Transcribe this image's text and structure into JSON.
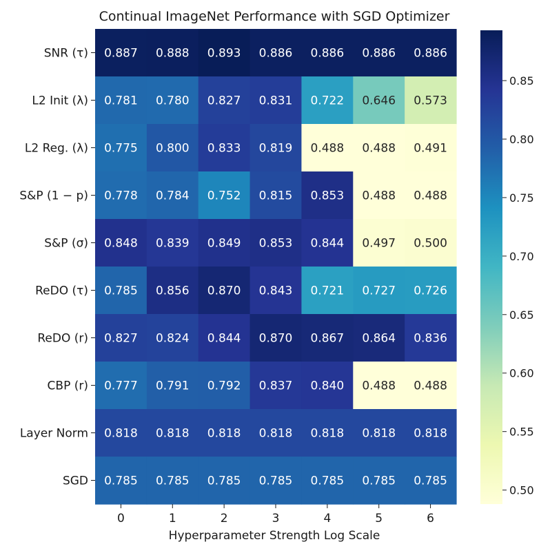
{
  "chart_data": {
    "type": "heatmap",
    "title": "Continual ImageNet Performance with SGD Optimizer",
    "xlabel": "Hyperparameter Strength Log Scale",
    "ylabel": "",
    "x_ticks": [
      "0",
      "1",
      "2",
      "3",
      "4",
      "5",
      "6"
    ],
    "rows": [
      {
        "label": "SNR (τ)",
        "values": [
          0.887,
          0.888,
          0.893,
          0.886,
          0.886,
          0.886,
          0.886
        ]
      },
      {
        "label": "L2 Init (λ)",
        "values": [
          0.781,
          0.78,
          0.827,
          0.831,
          0.722,
          0.646,
          0.573
        ]
      },
      {
        "label": "L2 Reg. (λ)",
        "values": [
          0.775,
          0.8,
          0.833,
          0.819,
          0.488,
          0.488,
          0.491
        ]
      },
      {
        "label": "S&P (1 − p)",
        "values": [
          0.778,
          0.784,
          0.752,
          0.815,
          0.853,
          0.488,
          0.488
        ]
      },
      {
        "label": "S&P (σ)",
        "values": [
          0.848,
          0.839,
          0.849,
          0.853,
          0.844,
          0.497,
          0.5
        ]
      },
      {
        "label": "ReDO (τ)",
        "values": [
          0.785,
          0.856,
          0.87,
          0.843,
          0.721,
          0.727,
          0.726
        ]
      },
      {
        "label": "ReDO (r)",
        "values": [
          0.827,
          0.824,
          0.844,
          0.87,
          0.867,
          0.864,
          0.836
        ]
      },
      {
        "label": "CBP (r)",
        "values": [
          0.777,
          0.791,
          0.792,
          0.837,
          0.84,
          0.488,
          0.488
        ]
      },
      {
        "label": "Layer Norm",
        "values": [
          0.818,
          0.818,
          0.818,
          0.818,
          0.818,
          0.818,
          0.818
        ]
      },
      {
        "label": "SGD",
        "values": [
          0.785,
          0.785,
          0.785,
          0.785,
          0.785,
          0.785,
          0.785
        ]
      }
    ],
    "value_format": "3 decimals",
    "colormap": "YlGnBu",
    "vmin": 0.488,
    "vmax": 0.893,
    "colorbar_ticks": [
      0.5,
      0.55,
      0.6,
      0.65,
      0.7,
      0.75,
      0.8,
      0.85
    ],
    "colorbar_tick_labels": [
      "0.50",
      "0.55",
      "0.60",
      "0.65",
      "0.70",
      "0.75",
      "0.80",
      "0.85"
    ],
    "grid": false
  }
}
